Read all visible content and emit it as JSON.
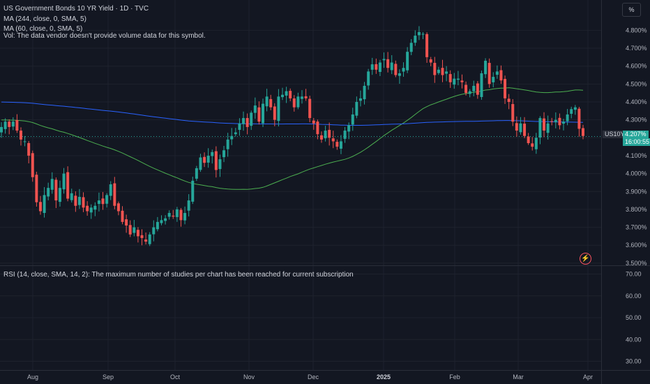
{
  "header": {
    "title": "US Government Bonds 10 YR Yield · 1D · TVC",
    "ma1": "MA (244, close, 0, SMA, 5)",
    "ma2": "MA (60, close, 0, SMA, 5)",
    "vol": "Vol: The data vendor doesn't provide volume data for this symbol."
  },
  "rsi_pane": {
    "label": "RSI (14, close, SMA, 14, 2): The maximum number of studies per chart has been reached for current subscription"
  },
  "unit_button": "%",
  "price_tags": {
    "symbol": "US10Y",
    "last": "4.207%",
    "countdown": "16:00:55"
  },
  "colors": {
    "background": "#131722",
    "up": "#26a69a",
    "down": "#ef5350",
    "ma244": "#2962ff",
    "ma60": "#4caf50",
    "grid": "#1e222d",
    "text": "#b2b5be"
  },
  "icons": {
    "alert": "lightning-icon"
  },
  "chart_data": {
    "type": "candlestick",
    "symbol": "US10Y",
    "interval": "1D",
    "x_labels": [
      "Aug",
      "Sep",
      "Oct",
      "Nov",
      "Dec",
      "2025",
      "Feb",
      "Mar",
      "Apr"
    ],
    "y_ticks": [
      "4.800%",
      "4.700%",
      "4.600%",
      "4.500%",
      "4.400%",
      "4.300%",
      "4.200%",
      "4.100%",
      "4.000%",
      "3.900%",
      "3.800%",
      "3.700%",
      "3.600%",
      "3.500%"
    ],
    "ylim": [
      3.48,
      4.86
    ],
    "rsi_ticks": [
      "70.00",
      "60.00",
      "50.00",
      "40.00",
      "30.00"
    ],
    "rsi_ylim": [
      26,
      74
    ],
    "last_value": 4.207,
    "closes": [
      4.26,
      4.29,
      4.26,
      4.29,
      4.24,
      4.19,
      4.18,
      4.1,
      3.98,
      3.84,
      3.79,
      3.88,
      3.92,
      3.97,
      3.85,
      3.92,
      4.0,
      3.86,
      3.89,
      3.82,
      3.87,
      3.81,
      3.79,
      3.81,
      3.82,
      3.85,
      3.83,
      3.88,
      3.94,
      3.82,
      3.79,
      3.73,
      3.71,
      3.66,
      3.7,
      3.65,
      3.64,
      3.62,
      3.66,
      3.7,
      3.73,
      3.74,
      3.75,
      3.78,
      3.76,
      3.8,
      3.74,
      3.78,
      3.85,
      3.96,
      4.03,
      4.09,
      4.06,
      4.1,
      4.12,
      4.02,
      4.08,
      4.13,
      4.19,
      4.21,
      4.23,
      4.28,
      4.31,
      4.26,
      4.34,
      4.38,
      4.29,
      4.39,
      4.43,
      4.37,
      4.3,
      4.43,
      4.44,
      4.46,
      4.42,
      4.37,
      4.43,
      4.43,
      4.42,
      4.31,
      4.28,
      4.22,
      4.19,
      4.24,
      4.2,
      4.18,
      4.15,
      4.18,
      4.24,
      4.27,
      4.33,
      4.4,
      4.42,
      4.49,
      4.57,
      4.61,
      4.58,
      4.62,
      4.64,
      4.59,
      4.62,
      4.55,
      4.56,
      4.59,
      4.68,
      4.73,
      4.77,
      4.79,
      4.78,
      4.65,
      4.62,
      4.55,
      4.58,
      4.55,
      4.57,
      4.51,
      4.53,
      4.53,
      4.51,
      4.45,
      4.46,
      4.49,
      4.44,
      4.56,
      4.63,
      4.5,
      4.54,
      4.57,
      4.52,
      4.42,
      4.4,
      4.29,
      4.24,
      4.28,
      4.21,
      4.17,
      4.15,
      4.2,
      4.31,
      4.24,
      4.28,
      4.29,
      4.3,
      4.27,
      4.29,
      4.33,
      4.36,
      4.37,
      4.25,
      4.21
    ]
  }
}
